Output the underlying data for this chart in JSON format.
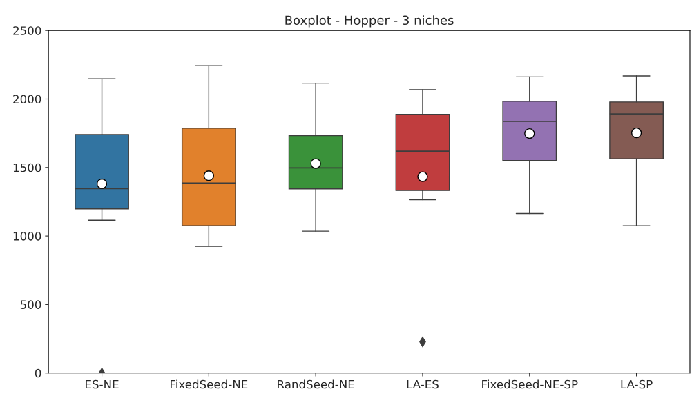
{
  "chart_data": {
    "type": "box",
    "title": "Boxplot - Hopper - 3 niches",
    "categories": [
      "ES-NE",
      "FixedSeed-NE",
      "RandSeed-NE",
      "LA-ES",
      "FixedSeed-NE-SP",
      "LA-SP"
    ],
    "colors": [
      "#3274a1",
      "#e1812c",
      "#3a923a",
      "#c03d3e",
      "#9372b2",
      "#845b53"
    ],
    "boxes": [
      {
        "low": 1115,
        "q1": 1198,
        "median": 1346,
        "q3": 1741,
        "high": 2147,
        "mean": 1381,
        "outliers": [
          0
        ]
      },
      {
        "low": 925,
        "q1": 1075,
        "median": 1386,
        "q3": 1787,
        "high": 2243,
        "mean": 1440
      },
      {
        "low": 1035,
        "q1": 1344,
        "median": 1497,
        "q3": 1733,
        "high": 2115,
        "mean": 1529
      },
      {
        "low": 1265,
        "q1": 1332,
        "median": 1619,
        "q3": 1888,
        "high": 2068,
        "mean": 1433,
        "outliers": [
          227
        ]
      },
      {
        "low": 1164,
        "q1": 1551,
        "median": 1837,
        "q3": 1983,
        "high": 2162,
        "mean": 1748
      },
      {
        "low": 1075,
        "q1": 1563,
        "median": 1891,
        "q3": 1978,
        "high": 2169,
        "mean": 1753
      }
    ],
    "ylim": [
      0,
      2500
    ],
    "yticks": [
      0,
      500,
      1000,
      1500,
      2000,
      2500
    ],
    "grid": false
  }
}
